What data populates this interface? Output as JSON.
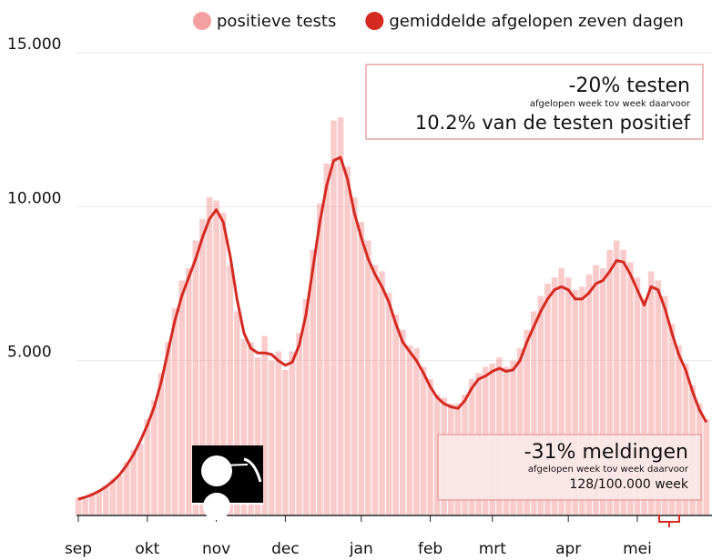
{
  "chart_data": {
    "type": "bar",
    "categories": [
      "sep",
      null,
      null,
      null,
      null,
      null,
      null,
      null,
      null,
      null,
      "okt",
      null,
      null,
      null,
      null,
      null,
      null,
      null,
      null,
      null,
      "nov",
      null,
      null,
      null,
      null,
      null,
      null,
      null,
      null,
      null,
      "dec",
      null,
      null,
      null,
      null,
      null,
      null,
      null,
      null,
      null,
      null,
      "jan",
      null,
      null,
      null,
      null,
      null,
      null,
      null,
      null,
      null,
      "feb",
      null,
      null,
      null,
      null,
      null,
      null,
      null,
      null,
      "mrt",
      null,
      null,
      null,
      null,
      null,
      null,
      null,
      null,
      null,
      null,
      "apr",
      null,
      null,
      null,
      null,
      null,
      null,
      null,
      null,
      null,
      "mei",
      null,
      null,
      null,
      null,
      null,
      null,
      null,
      null,
      null,
      null
    ],
    "series": [
      {
        "name": "positieve tests",
        "type": "bar",
        "color": "#f4a0a0",
        "values": [
          550,
          500,
          700,
          800,
          950,
          1150,
          1250,
          1700,
          2100,
          2300,
          3100,
          3700,
          4600,
          5600,
          6700,
          7600,
          8000,
          8900,
          9600,
          10300,
          10200,
          9800,
          8100,
          6600,
          5700,
          5600,
          5100,
          5800,
          5000,
          5300,
          4700,
          5300,
          5900,
          7000,
          8600,
          10100,
          11400,
          12800,
          12900,
          11300,
          10300,
          9500,
          8900,
          8100,
          7900,
          7200,
          6500,
          6000,
          5500,
          5400,
          4800,
          4400,
          3900,
          3800,
          3600,
          3600,
          3900,
          4400,
          4600,
          4800,
          4900,
          5100,
          4800,
          5000,
          5400,
          6000,
          6600,
          7100,
          7500,
          7700,
          8000,
          7700,
          7300,
          7400,
          7800,
          8100,
          8000,
          8600,
          8900,
          8600,
          8200,
          7700,
          7000,
          7900,
          7600,
          7100,
          6200,
          5500,
          4900,
          4200,
          3600,
          3100
        ]
      },
      {
        "name": "gemiddelde afgelopen zeven dagen",
        "type": "line",
        "color": "#d42a22",
        "values": [
          500,
          560,
          650,
          760,
          900,
          1080,
          1300,
          1600,
          1950,
          2400,
          2900,
          3500,
          4300,
          5300,
          6300,
          7100,
          7700,
          8300,
          9000,
          9600,
          9900,
          9500,
          8400,
          7000,
          5900,
          5400,
          5250,
          5250,
          5200,
          5000,
          4850,
          4950,
          5500,
          6500,
          8000,
          9500,
          10700,
          11500,
          11600,
          10900,
          9800,
          9000,
          8300,
          7800,
          7400,
          6900,
          6200,
          5600,
          5300,
          5000,
          4600,
          4150,
          3800,
          3600,
          3500,
          3450,
          3700,
          4100,
          4400,
          4500,
          4650,
          4750,
          4650,
          4700,
          5000,
          5600,
          6100,
          6600,
          7000,
          7300,
          7400,
          7300,
          7000,
          7000,
          7200,
          7500,
          7600,
          7900,
          8250,
          8200,
          7800,
          7300,
          6800,
          7400,
          7300,
          6700,
          5900,
          5200,
          4700,
          4000,
          3400,
          3000
        ]
      }
    ],
    "ylim": [
      0,
      15000
    ],
    "yticks": [
      {
        "value": 5000,
        "label": "5.000"
      },
      {
        "value": 10000,
        "label": "10.000"
      },
      {
        "value": 15000,
        "label": "15.000"
      }
    ],
    "grid": true,
    "legend": "top-right",
    "annotations": [
      {
        "lines": [
          "-20% testen",
          "afgelopen week tov week daarvoor",
          "10.2% van de testen positief"
        ]
      },
      {
        "lines": [
          "-31% meldingen",
          "afgelopen week tov week daarvoor",
          "128/100.000 week"
        ]
      }
    ]
  }
}
